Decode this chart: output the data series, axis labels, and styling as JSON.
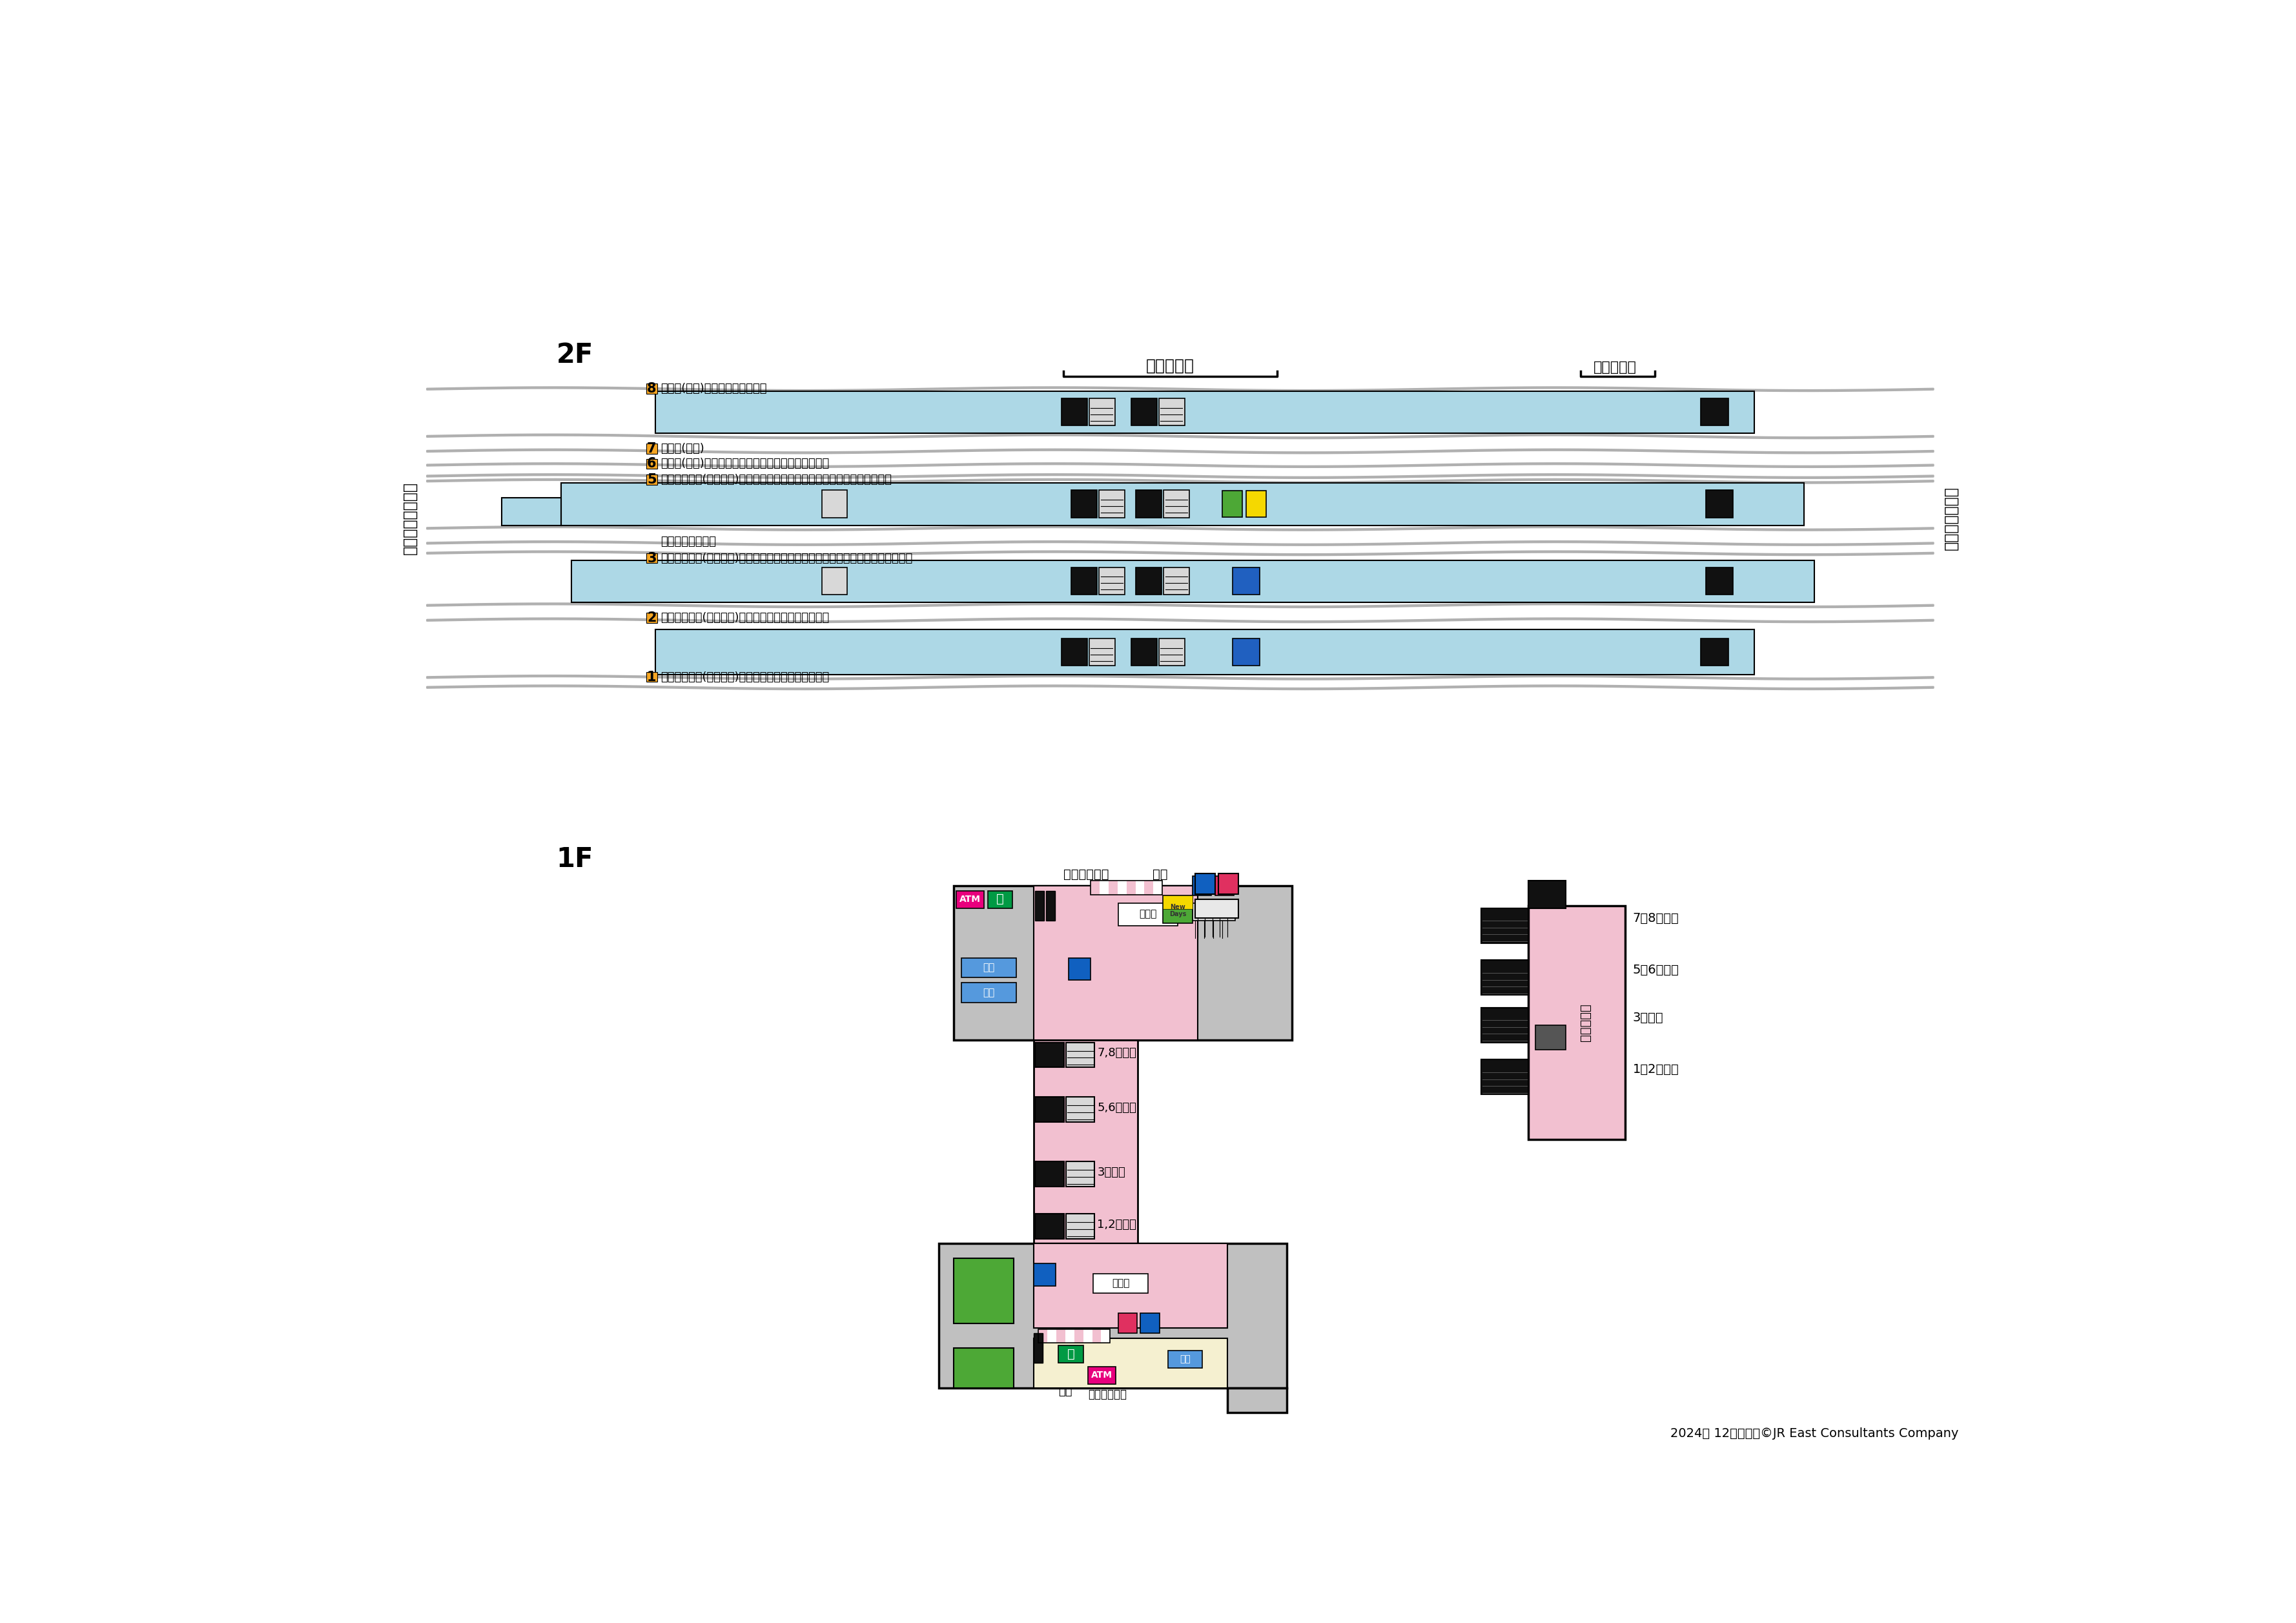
{
  "bg_color": "#ffffff",
  "platform_blue": "#add8e6",
  "track_gray": "#b0b0b0",
  "pink": "#f2c0d0",
  "light_gray_bldg": "#c8c8c8",
  "green_newdays": "#4caf50",
  "2f_label": "2F",
  "1f_label": "1F",
  "left_label": "三鷹・八王子方面",
  "right_label": "新宿・千葉方面",
  "kita_minami": "北口・南口",
  "norikae": "乗換え通路",
  "p8_label": "8 中央線(快速)（新宿・東京方面）",
  "p7_label": "7 中央線(快速)",
  "p6_label": "6 中央線(快速)（武蔵小金井・立川・高尾・大月方面）",
  "p5_label": "5 中央・総武線(各駅停車)（東中野・新宿・千葉・東京メトロ東西線方面）",
  "p_metro_label": "東京メトロ東西線",
  "p3_label": "3 中央・総武線(各駅停車)（高円寺・荷稺・三鷹方面）（東京メトロ東西線方面）",
  "p2_label": "2 中央・総武線(各駅停車)（東中野・新宿・千葉方面）",
  "p1_label": "1 中央・総武線(各駅停車)（高円寺・荷稺・三鷹方面）",
  "footer": "2024年 12月現在　©JR East Consultants Company"
}
